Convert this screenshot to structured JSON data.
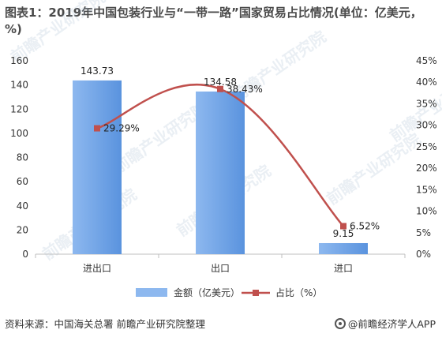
{
  "title": "图表1：2019年中国包装行业与“一带一路”国家贸易占比情况(单位：亿美元，%)",
  "footer": {
    "source": "资料来源：中国海关总署 前瞻产业研究院整理",
    "brand": "@前瞻经济学人APP"
  },
  "watermark_text": "前瞻产业研究院",
  "chart_data": {
    "type": "bar",
    "categories": [
      "进出口",
      "出口",
      "进口"
    ],
    "series": [
      {
        "name": "金额（亿美元）",
        "type": "bar",
        "axis": "left",
        "values": [
          143.73,
          134.58,
          9.15
        ],
        "labels": [
          "143.73",
          "134.58",
          "9.15"
        ],
        "color": "#8db8ef"
      },
      {
        "name": "占比（%）",
        "type": "line",
        "axis": "right",
        "values": [
          29.29,
          38.43,
          6.52
        ],
        "labels": [
          "29.29%",
          "38.43%",
          "6.52%"
        ],
        "color": "#c0504d"
      }
    ],
    "left_axis": {
      "min": 0,
      "max": 160,
      "ticks": [
        "0",
        "20",
        "40",
        "60",
        "80",
        "100",
        "120",
        "140",
        "160"
      ]
    },
    "right_axis": {
      "min": 0,
      "max": 45,
      "ticks": [
        "0%",
        "5%",
        "10%",
        "15%",
        "20%",
        "25%",
        "30%",
        "35%",
        "40%",
        "45%"
      ]
    },
    "grid": false,
    "legend_position": "bottom"
  }
}
